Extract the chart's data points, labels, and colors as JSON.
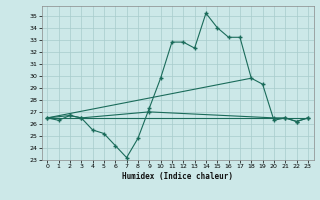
{
  "xlabel": "Humidex (Indice chaleur)",
  "xlim": [
    -0.5,
    23.5
  ],
  "ylim": [
    23,
    35.8
  ],
  "yticks": [
    23,
    24,
    25,
    26,
    27,
    28,
    29,
    30,
    31,
    32,
    33,
    34,
    35
  ],
  "xticks": [
    0,
    1,
    2,
    3,
    4,
    5,
    6,
    7,
    8,
    9,
    10,
    11,
    12,
    13,
    14,
    15,
    16,
    17,
    18,
    19,
    20,
    21,
    22,
    23
  ],
  "bg_color": "#cce8e8",
  "grid_color": "#a8cccc",
  "line_color": "#1a6b5a",
  "line1_x": [
    0,
    1,
    2,
    3,
    4,
    5,
    6,
    7,
    8,
    9,
    10,
    11,
    12,
    13,
    14,
    15,
    16,
    17,
    18,
    19,
    20,
    21,
    22,
    23
  ],
  "line1_y": [
    26.5,
    26.3,
    26.7,
    26.5,
    25.5,
    25.2,
    24.2,
    23.2,
    24.8,
    27.3,
    29.8,
    32.8,
    32.8,
    32.3,
    35.2,
    34.0,
    33.2,
    33.2,
    29.8,
    29.3,
    26.3,
    26.5,
    26.2,
    26.5
  ],
  "line2_x": [
    0,
    18
  ],
  "line2_y": [
    26.5,
    29.8
  ],
  "line3_x": [
    0,
    23
  ],
  "line3_y": [
    26.5,
    26.5
  ],
  "line4_x": [
    0,
    2,
    3,
    9,
    20,
    21,
    22,
    23
  ],
  "line4_y": [
    26.5,
    26.7,
    26.5,
    27.0,
    26.5,
    26.5,
    26.2,
    26.5
  ]
}
